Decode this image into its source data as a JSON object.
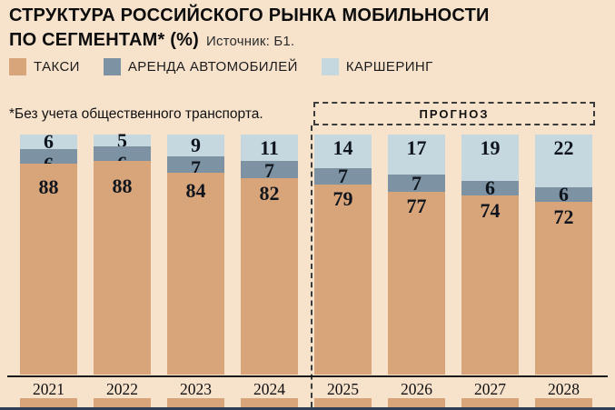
{
  "header": {
    "title_line1": "СТРУКТУРА РОССИЙСКОГО РЫНКА МОБИЛЬНОСТИ",
    "title_line2": "ПО СЕГМЕНТАМ* (%)",
    "source": "Источник: Б1."
  },
  "legend": [
    {
      "label": "ТАКСИ",
      "color": "#d8a57a"
    },
    {
      "label": "АРЕНДА АВТОМОБИЛЕЙ",
      "color": "#7d93a3"
    },
    {
      "label": "КАРШЕРИНГ",
      "color": "#c5d8e0"
    }
  ],
  "footnote": "*Без учета общественного транспорта.",
  "forecast_label": "ПРОГНОЗ",
  "chart_data": {
    "type": "bar",
    "stacked": true,
    "unit": "%",
    "title": "СТРУКТУРА РОССИЙСКОГО РЫНКА МОБИЛЬНОСТИ ПО СЕГМЕНТАМ* (%)",
    "legend_position": "top",
    "grid": false,
    "ylim": [
      0,
      100
    ],
    "categories": [
      "2021",
      "2022",
      "2023",
      "2024",
      "2025",
      "2026",
      "2027",
      "2028"
    ],
    "series": [
      {
        "name": "ТАКСИ",
        "color": "#d8a57a",
        "values": [
          88,
          88,
          84,
          82,
          79,
          77,
          74,
          72
        ]
      },
      {
        "name": "АРЕНДА АВТОМОБИЛЕЙ",
        "color": "#7d93a3",
        "values": [
          6,
          6,
          7,
          7,
          7,
          7,
          6,
          6
        ]
      },
      {
        "name": "КАРШЕРИНГ",
        "color": "#c5d8e0",
        "values": [
          6,
          5,
          9,
          11,
          14,
          17,
          19,
          22
        ]
      }
    ],
    "forecast_from": "2025",
    "annotations": [
      "ПРОГНОЗ"
    ]
  },
  "colors": {
    "background": "#f7e2cc",
    "axis": "#1a1a1a",
    "bottom_strip": "#2e3e57",
    "dashed_line": "#3c3c3c",
    "value_text": "#10151d"
  }
}
